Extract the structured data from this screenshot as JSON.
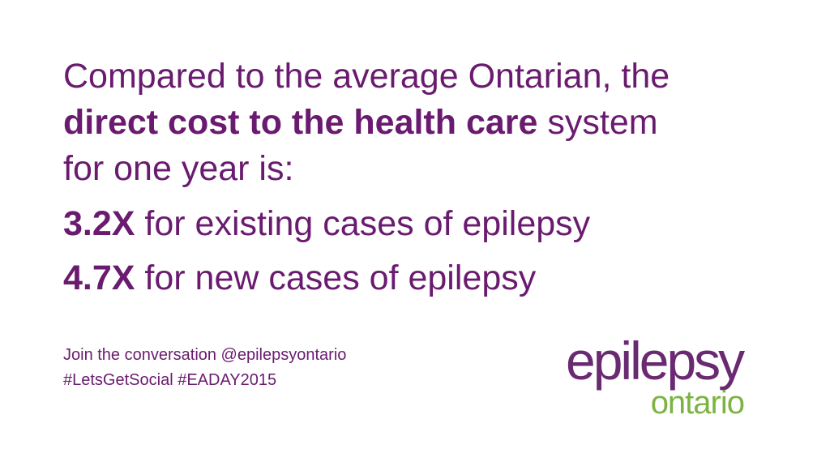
{
  "headline": [
    "Compared to the average Ontarian, the",
    "direct cost to the health care",
    "system",
    "for one year is:"
  ],
  "stats": [
    {
      "figure": "3.2X",
      "text": "for existing cases of epilepsy"
    },
    {
      "figure": "4.7X",
      "text": "for new cases of epilepsy"
    }
  ],
  "footer": [
    "Join the conversation @epilepsyontario",
    "#LetsGetSocial #EADAY2015"
  ],
  "logo": {
    "main": "epilepsy",
    "sub": "ontario"
  }
}
